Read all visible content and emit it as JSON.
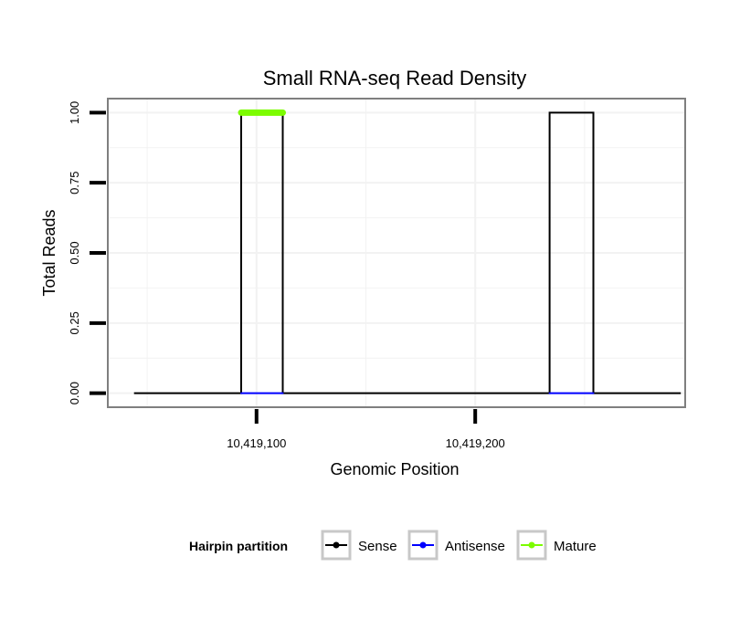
{
  "chart_data": {
    "type": "line",
    "title": "Small RNA-seq Read Density",
    "xlabel": "Genomic Position",
    "ylabel": "Total Reads",
    "xlim": [
      10419032,
      10419296
    ],
    "ylim": [
      -0.05,
      1.05
    ],
    "x_ticks": [
      10419100,
      10419200
    ],
    "x_tick_labels": [
      "10,419,100",
      "10,419,200"
    ],
    "y_ticks": [
      0,
      0.25,
      0.5,
      0.75,
      1.0
    ],
    "y_tick_labels": [
      "0.00",
      "0.25",
      "0.50",
      "0.75",
      "1.00"
    ],
    "grid": true,
    "legend": {
      "title": "Hairpin partition",
      "position": "bottom",
      "entries": [
        {
          "label": "Sense",
          "color": "#000000"
        },
        {
          "label": "Antisense",
          "color": "#0000ff"
        },
        {
          "label": "Mature",
          "color": "#7cfc00"
        }
      ]
    },
    "series": [
      {
        "name": "Sense",
        "color": "#000000",
        "x": [
          10419044,
          10419093,
          10419093,
          10419112,
          10419112,
          10419234,
          10419234,
          10419254,
          10419254,
          10419294
        ],
        "y": [
          0,
          0,
          1,
          1,
          0,
          0,
          1,
          1,
          0,
          0
        ]
      },
      {
        "name": "Antisense",
        "color": "#0000ff",
        "segments": [
          {
            "x": [
              10419093,
              10419112
            ],
            "y": [
              0,
              0
            ]
          },
          {
            "x": [
              10419234,
              10419254
            ],
            "y": [
              0,
              0
            ]
          }
        ]
      },
      {
        "name": "Mature",
        "color": "#7cfc00",
        "segments": [
          {
            "x": [
              10419093,
              10419112
            ],
            "y": [
              1,
              1
            ]
          }
        ]
      }
    ]
  }
}
